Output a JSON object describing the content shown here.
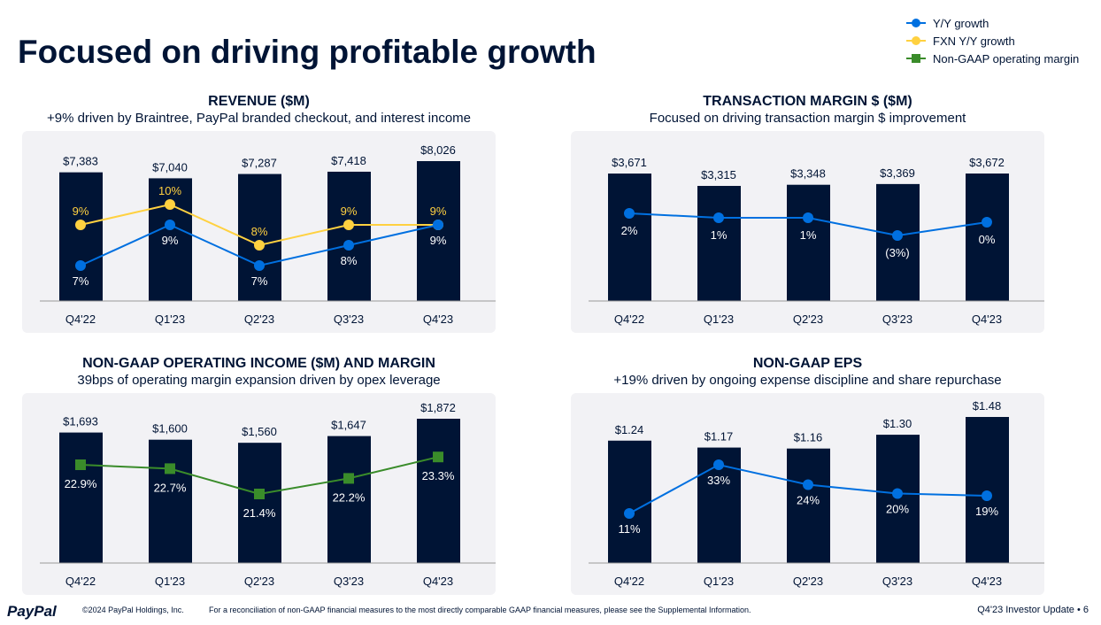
{
  "title": "Focused on driving profitable growth",
  "legend": [
    {
      "label": "Y/Y growth",
      "color": "#0070E0",
      "marker": "circle"
    },
    {
      "label": "FXN Y/Y growth",
      "color": "#FFD140",
      "marker": "circle"
    },
    {
      "label": "Non-GAAP operating margin",
      "color": "#3A8C2A",
      "marker": "square"
    }
  ],
  "colors": {
    "bar": "#001435",
    "axis": "#999999"
  },
  "footer": {
    "logo": "PayPal",
    "copyright": "©2024 PayPal Holdings, Inc.",
    "note": "For a reconciliation of non-GAAP financial measures to the most directly comparable GAAP financial measures, please see the Supplemental Information.",
    "page": "Q4'23 Investor Update  •  6"
  },
  "chart_data": [
    {
      "type": "bar",
      "title": "REVENUE ($M)",
      "subtitle": "+9% driven by Braintree, PayPal branded checkout, and interest income",
      "categories": [
        "Q4'22",
        "Q1'23",
        "Q2'23",
        "Q3'23",
        "Q4'23"
      ],
      "values": [
        7383,
        7040,
        7287,
        7418,
        8026
      ],
      "value_labels": [
        "$7,383",
        "$7,040",
        "$7,287",
        "$7,418",
        "$8,026"
      ],
      "series": [
        {
          "name": "Y/Y growth",
          "type": "line",
          "values": [
            7,
            9,
            7,
            8,
            9
          ],
          "labels": [
            "7%",
            "9%",
            "7%",
            "8%",
            "9%"
          ],
          "color": "#0070E0"
        },
        {
          "name": "FXN Y/Y growth",
          "type": "line",
          "values": [
            9,
            10,
            8,
            9,
            9
          ],
          "labels": [
            "9%",
            "10%",
            "8%",
            "9%",
            "9%"
          ],
          "color": "#FFD140"
        }
      ]
    },
    {
      "type": "bar",
      "title": "TRANSACTION MARGIN $ ($M)",
      "subtitle": "Focused on driving transaction margin $ improvement",
      "categories": [
        "Q4'22",
        "Q1'23",
        "Q2'23",
        "Q3'23",
        "Q4'23"
      ],
      "values": [
        3671,
        3315,
        3348,
        3369,
        3672
      ],
      "value_labels": [
        "$3,671",
        "$3,315",
        "$3,348",
        "$3,369",
        "$3,672"
      ],
      "series": [
        {
          "name": "Y/Y growth",
          "type": "line",
          "values": [
            2,
            1,
            1,
            -3,
            0
          ],
          "labels": [
            "2%",
            "1%",
            "1%",
            "(3%)",
            "0%"
          ],
          "color": "#0070E0"
        }
      ]
    },
    {
      "type": "bar",
      "title": "NON-GAAP OPERATING INCOME ($M) AND MARGIN",
      "subtitle": "39bps of operating margin expansion driven by opex leverage",
      "categories": [
        "Q4'22",
        "Q1'23",
        "Q2'23",
        "Q3'23",
        "Q4'23"
      ],
      "values": [
        1693,
        1600,
        1560,
        1647,
        1872
      ],
      "value_labels": [
        "$1,693",
        "$1,600",
        "$1,560",
        "$1,647",
        "$1,872"
      ],
      "series": [
        {
          "name": "Non-GAAP operating margin",
          "type": "line",
          "values": [
            22.9,
            22.7,
            21.4,
            22.2,
            23.3
          ],
          "labels": [
            "22.9%",
            "22.7%",
            "21.4%",
            "22.2%",
            "23.3%"
          ],
          "color": "#3A8C2A"
        }
      ]
    },
    {
      "type": "bar",
      "title": "NON-GAAP EPS",
      "subtitle": "+19% driven by ongoing expense discipline and share repurchase",
      "categories": [
        "Q4'22",
        "Q1'23",
        "Q2'23",
        "Q3'23",
        "Q4'23"
      ],
      "values": [
        1.24,
        1.17,
        1.16,
        1.3,
        1.48
      ],
      "value_labels": [
        "$1.24",
        "$1.17",
        "$1.16",
        "$1.30",
        "$1.48"
      ],
      "series": [
        {
          "name": "Y/Y growth",
          "type": "line",
          "values": [
            11,
            33,
            24,
            20,
            19
          ],
          "labels": [
            "11%",
            "33%",
            "24%",
            "20%",
            "19%"
          ],
          "color": "#0070E0"
        }
      ]
    }
  ]
}
